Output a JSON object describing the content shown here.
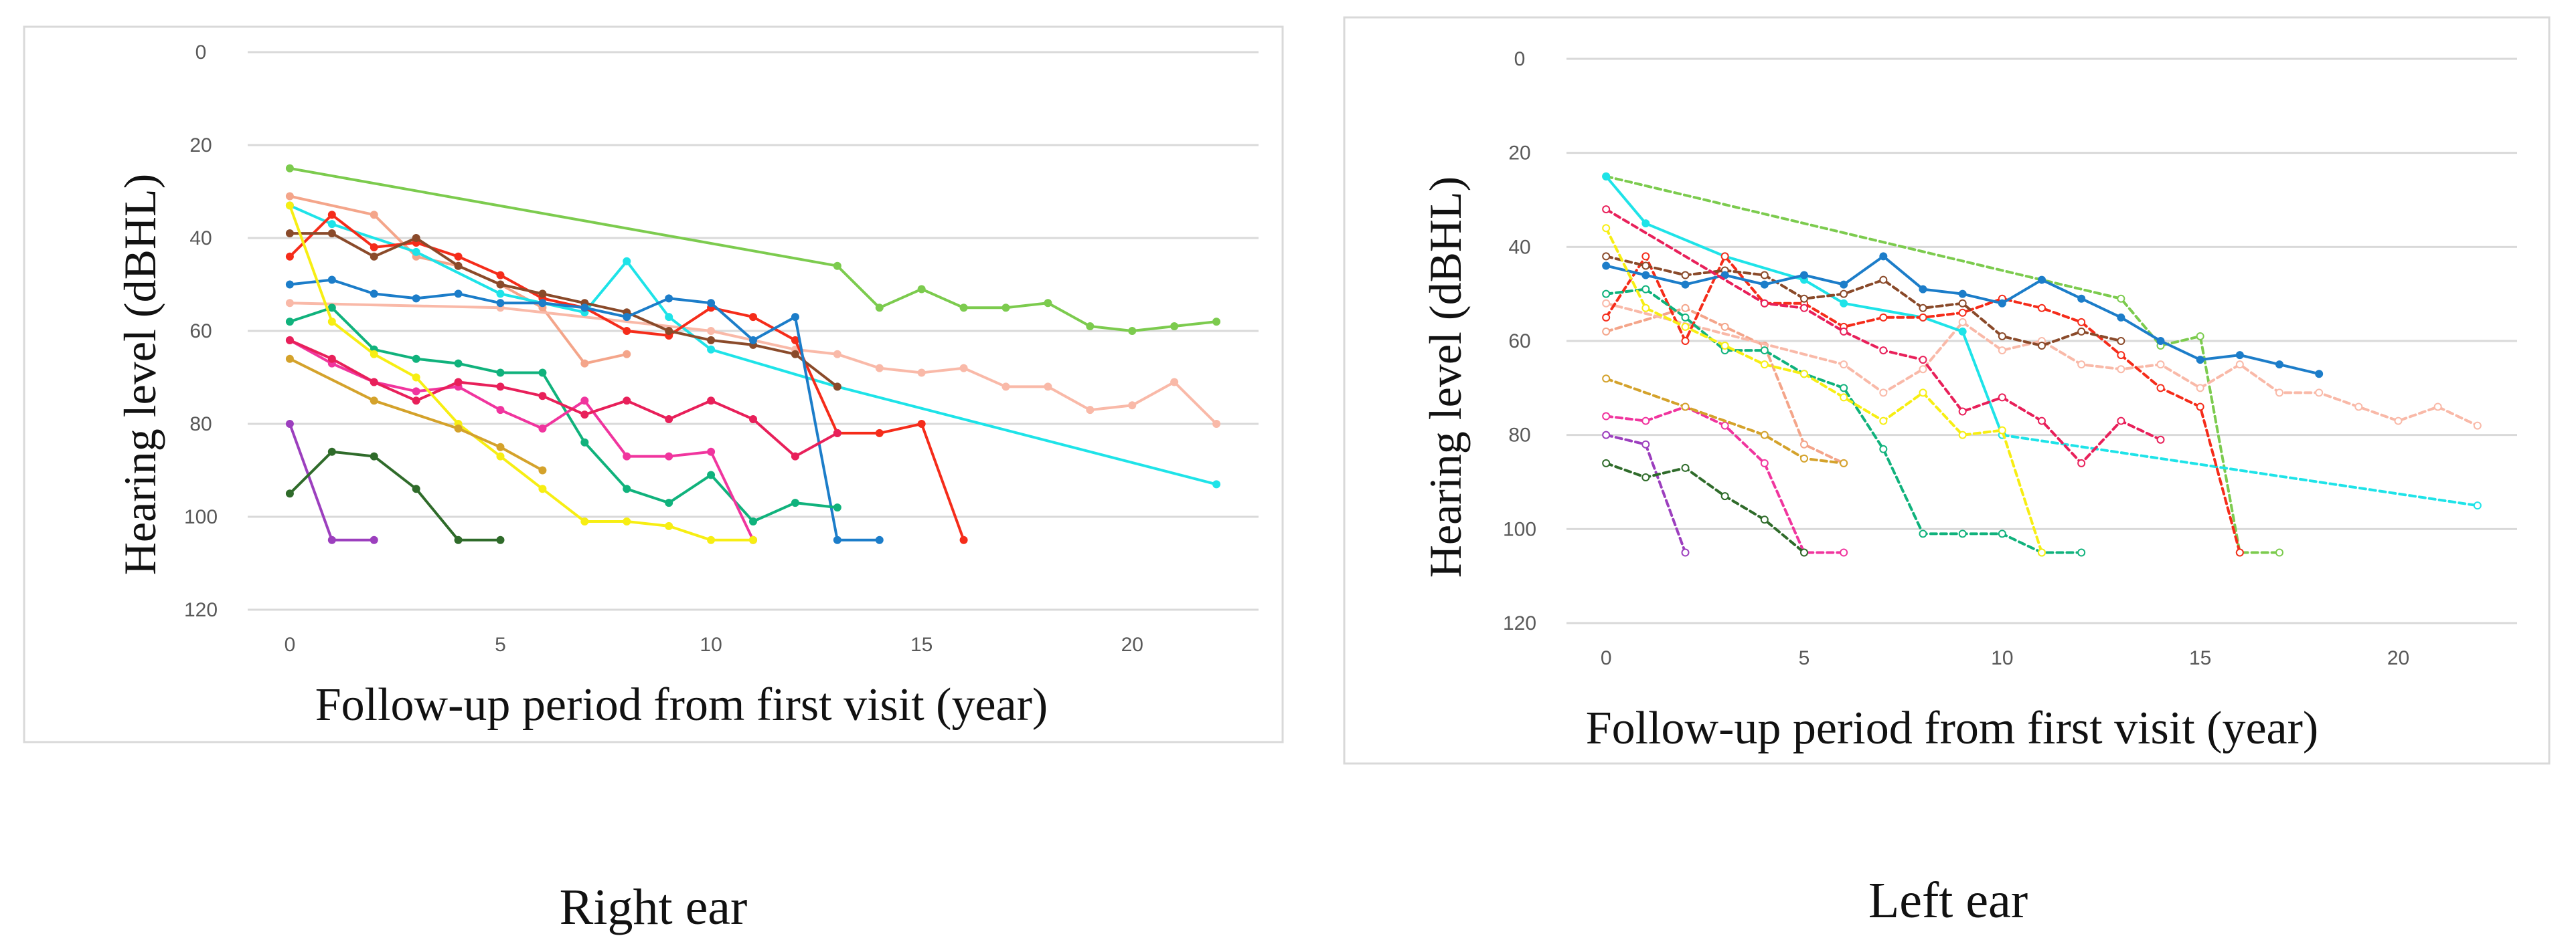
{
  "chart_data": [
    {
      "type": "line",
      "title": "",
      "caption": "Right ear",
      "xlabel": "Follow-up period from first visit (year)",
      "ylabel": "Hearing level (dBHL)",
      "xlim": [
        -1,
        23
      ],
      "ylim": [
        0,
        120
      ],
      "y_inverted": true,
      "xticks": [
        0,
        5,
        10,
        15,
        20
      ],
      "yticks": [
        0,
        20,
        40,
        60,
        80,
        100,
        120
      ],
      "xtick_labels": [
        "0",
        "5",
        "10",
        "15",
        "20"
      ],
      "ytick_labels": [
        "0",
        "20",
        "40",
        "60",
        "80",
        "100",
        "120"
      ],
      "grid": "horizontal",
      "legend": "none",
      "series": [
        {
          "name": "light green",
          "color": "#7CCB4E",
          "dashed": false,
          "x": [
            0,
            13,
            14,
            15,
            16,
            17,
            18,
            19,
            20,
            21,
            22
          ],
          "y": [
            25,
            46,
            55,
            51,
            55,
            55,
            54,
            59,
            60,
            59,
            58
          ]
        },
        {
          "name": "salmon",
          "color": "#F4A58A",
          "dashed": false,
          "x": [
            0,
            2,
            3,
            4,
            5,
            6,
            7,
            8
          ],
          "y": [
            31,
            35,
            44,
            46,
            50,
            55,
            67,
            65
          ]
        },
        {
          "name": "light pink",
          "color": "#F9B9A8",
          "dashed": false,
          "x": [
            0,
            5,
            10,
            12,
            13,
            14,
            15,
            16,
            17,
            18,
            19,
            20,
            21,
            22
          ],
          "y": [
            54,
            55,
            60,
            64,
            65,
            68,
            69,
            68,
            72,
            72,
            77,
            76,
            71,
            80
          ]
        },
        {
          "name": "cyan",
          "color": "#1EE3E8",
          "dashed": false,
          "x": [
            0,
            1,
            3,
            5,
            7,
            8,
            9,
            10,
            13,
            22
          ],
          "y": [
            33,
            37,
            43,
            52,
            56,
            45,
            57,
            64,
            72,
            93
          ]
        },
        {
          "name": "red",
          "color": "#F52C1A",
          "dashed": false,
          "x": [
            0,
            1,
            2,
            3,
            4,
            5,
            6,
            7,
            8,
            9,
            10,
            11,
            12,
            13,
            14,
            15,
            16
          ],
          "y": [
            44,
            35,
            42,
            41,
            44,
            48,
            53,
            55,
            60,
            61,
            55,
            57,
            62,
            82,
            82,
            80,
            105
          ]
        },
        {
          "name": "brown",
          "color": "#8A4A2A",
          "dashed": false,
          "x": [
            0,
            1,
            2,
            3,
            4,
            5,
            6,
            7,
            8,
            9,
            10,
            11,
            12,
            13
          ],
          "y": [
            39,
            39,
            44,
            40,
            46,
            50,
            52,
            54,
            56,
            60,
            62,
            63,
            65,
            72
          ]
        },
        {
          "name": "blue",
          "color": "#1C7DC9",
          "dashed": false,
          "x": [
            0,
            1,
            2,
            3,
            4,
            5,
            6,
            7,
            8,
            9,
            10,
            11,
            12,
            13,
            14
          ],
          "y": [
            50,
            49,
            52,
            53,
            52,
            54,
            54,
            55,
            57,
            53,
            54,
            62,
            57,
            105,
            105
          ]
        },
        {
          "name": "teal green",
          "color": "#10B27C",
          "dashed": false,
          "x": [
            0,
            1,
            2,
            3,
            4,
            5,
            6,
            7,
            8,
            9,
            10,
            11,
            12,
            13
          ],
          "y": [
            58,
            55,
            64,
            66,
            67,
            69,
            69,
            84,
            94,
            97,
            91,
            101,
            97,
            98
          ]
        },
        {
          "name": "magenta",
          "color": "#F0359E",
          "dashed": false,
          "x": [
            0,
            1,
            2,
            3,
            4,
            5,
            6,
            7,
            8,
            9,
            10,
            11
          ],
          "y": [
            62,
            67,
            71,
            73,
            72,
            77,
            81,
            75,
            87,
            87,
            86,
            105
          ]
        },
        {
          "name": "crimson",
          "color": "#E8205A",
          "dashed": false,
          "x": [
            0,
            1,
            2,
            3,
            4,
            5,
            6,
            7,
            8,
            9,
            10,
            11,
            12,
            13
          ],
          "y": [
            62,
            66,
            71,
            75,
            71,
            72,
            74,
            78,
            75,
            79,
            75,
            79,
            87,
            82
          ]
        },
        {
          "name": "yellow",
          "color": "#F7EE13",
          "dashed": false,
          "x": [
            0,
            1,
            2,
            3,
            4,
            5,
            6,
            7,
            8,
            9,
            10,
            11
          ],
          "y": [
            33,
            58,
            65,
            70,
            80,
            87,
            94,
            101,
            101,
            102,
            105,
            105
          ]
        },
        {
          "name": "gold",
          "color": "#D4A22B",
          "dashed": false,
          "x": [
            0,
            2,
            4,
            5,
            6
          ],
          "y": [
            66,
            75,
            81,
            85,
            90
          ]
        },
        {
          "name": "purple",
          "color": "#9C3FBE",
          "dashed": false,
          "x": [
            0,
            1,
            2
          ],
          "y": [
            80,
            105,
            105
          ]
        },
        {
          "name": "dark green",
          "color": "#2F6B2A",
          "dashed": false,
          "x": [
            0,
            1,
            2,
            3,
            4,
            5
          ],
          "y": [
            95,
            86,
            87,
            94,
            105,
            105
          ]
        }
      ]
    },
    {
      "type": "line",
      "title": "",
      "caption": "Left ear",
      "xlabel": "Follow-up period from first visit (year)",
      "ylabel": "Hearing level (dBHL)",
      "xlim": [
        -1,
        23
      ],
      "ylim": [
        0,
        120
      ],
      "y_inverted": true,
      "xticks": [
        0,
        5,
        10,
        15,
        20
      ],
      "yticks": [
        0,
        20,
        40,
        60,
        80,
        100,
        120
      ],
      "xtick_labels": [
        "0",
        "5",
        "10",
        "15",
        "20"
      ],
      "ytick_labels": [
        "0",
        "20",
        "40",
        "60",
        "80",
        "100",
        "120"
      ],
      "grid": "horizontal",
      "legend": "none",
      "series": [
        {
          "name": "light green",
          "color": "#7CCB4E",
          "dashed": true,
          "x": [
            0,
            13,
            14,
            15,
            16,
            17
          ],
          "y": [
            25,
            51,
            61,
            59,
            105,
            105
          ]
        },
        {
          "name": "salmon",
          "color": "#F4A58A",
          "dashed": true,
          "x": [
            0,
            2,
            3,
            4,
            5,
            6
          ],
          "y": [
            58,
            53,
            57,
            61,
            82,
            86
          ]
        },
        {
          "name": "light pink",
          "color": "#F9B9A8",
          "dashed": true,
          "x": [
            0,
            6,
            7,
            8,
            9,
            10,
            11,
            12,
            13,
            14,
            15,
            16,
            17,
            18,
            19,
            20,
            21,
            22
          ],
          "y": [
            52,
            65,
            71,
            66,
            56,
            62,
            60,
            65,
            66,
            65,
            70,
            65,
            71,
            71,
            74,
            77,
            74,
            78
          ]
        },
        {
          "name": "cyan",
          "color": "#1EE3E8",
          "dashed": false,
          "x": [
            0,
            1,
            3,
            5,
            6,
            8,
            9,
            10
          ],
          "y": [
            25,
            35,
            42,
            47,
            52,
            55,
            58,
            80
          ]
        },
        {
          "name": "cyan dotted",
          "color": "#1EE3E8",
          "dashed": true,
          "x": [
            10,
            22
          ],
          "y": [
            80,
            95
          ]
        },
        {
          "name": "red",
          "color": "#F52C1A",
          "dashed": true,
          "x": [
            0,
            1,
            2,
            3,
            4,
            5,
            6,
            7,
            8,
            9,
            10,
            11,
            12,
            13,
            14,
            15,
            16
          ],
          "y": [
            55,
            42,
            60,
            42,
            52,
            52,
            57,
            55,
            55,
            54,
            51,
            53,
            56,
            63,
            70,
            74,
            105
          ]
        },
        {
          "name": "brown",
          "color": "#8A4A2A",
          "dashed": true,
          "x": [
            0,
            1,
            2,
            3,
            4,
            5,
            6,
            7,
            8,
            9,
            10,
            11,
            12,
            13
          ],
          "y": [
            42,
            44,
            46,
            45,
            46,
            51,
            50,
            47,
            53,
            52,
            59,
            61,
            58,
            60
          ]
        },
        {
          "name": "blue",
          "color": "#1C7DC9",
          "dashed": false,
          "x": [
            0,
            1,
            2,
            3,
            4,
            5,
            6,
            7,
            8,
            9,
            10,
            11,
            12,
            13,
            14,
            15,
            16,
            17,
            18
          ],
          "y": [
            44,
            46,
            48,
            46,
            48,
            46,
            48,
            42,
            49,
            50,
            52,
            47,
            51,
            55,
            60,
            64,
            63,
            65,
            67
          ]
        },
        {
          "name": "teal green",
          "color": "#10B27C",
          "dashed": true,
          "x": [
            0,
            1,
            2,
            3,
            4,
            5,
            6,
            7,
            8,
            9,
            10,
            11,
            12
          ],
          "y": [
            50,
            49,
            55,
            62,
            62,
            67,
            70,
            83,
            101,
            101,
            101,
            105,
            105
          ]
        },
        {
          "name": "magenta",
          "color": "#F0359E",
          "dashed": true,
          "x": [
            0,
            1,
            2,
            3,
            4,
            5,
            6
          ],
          "y": [
            76,
            77,
            74,
            78,
            86,
            105,
            105
          ]
        },
        {
          "name": "crimson",
          "color": "#E8205A",
          "dashed": true,
          "x": [
            0,
            4,
            5,
            6,
            7,
            8,
            9,
            10,
            11,
            12,
            13,
            14
          ],
          "y": [
            32,
            52,
            53,
            58,
            62,
            64,
            75,
            72,
            77,
            86,
            77,
            81
          ]
        },
        {
          "name": "yellow",
          "color": "#F7EE13",
          "dashed": true,
          "x": [
            0,
            1,
            2,
            3,
            4,
            5,
            6,
            7,
            8,
            9,
            10,
            11
          ],
          "y": [
            36,
            53,
            57,
            61,
            65,
            67,
            72,
            77,
            71,
            80,
            79,
            105
          ]
        },
        {
          "name": "gold",
          "color": "#D4A22B",
          "dashed": true,
          "x": [
            0,
            2,
            4,
            5,
            6
          ],
          "y": [
            68,
            74,
            80,
            85,
            86
          ]
        },
        {
          "name": "purple",
          "color": "#9C3FBE",
          "dashed": true,
          "x": [
            0,
            1,
            2
          ],
          "y": [
            80,
            82,
            105
          ]
        },
        {
          "name": "dark green",
          "color": "#2F6B2A",
          "dashed": true,
          "x": [
            0,
            1,
            2,
            3,
            4,
            5
          ],
          "y": [
            86,
            89,
            87,
            93,
            98,
            105
          ]
        }
      ]
    }
  ]
}
